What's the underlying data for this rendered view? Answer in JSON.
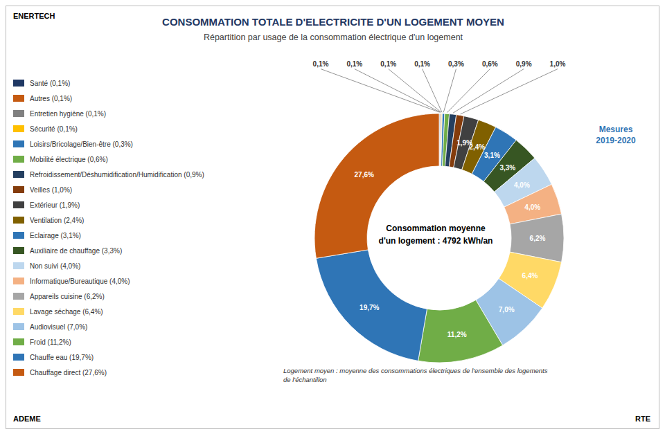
{
  "chart_data": {
    "type": "donut",
    "title": "CONSOMMATION TOTALE D'ELECTRICITE D'UN LOGEMENT MOYEN",
    "subtitle": "Répartition par usage de la consommation électrique d'un logement",
    "categories": [
      "Santé (0,1%)",
      "Autres (0,1%)",
      "Entretien hygiène (0,1%)",
      "Sécurité (0,1%)",
      "Loisirs/Bricolage/Bien-être (0,3%)",
      "Mobilité électrique (0,6%)",
      "Refroidissement/Déshumidification/Humidification (0,9%)",
      "Veilles (1,0%)",
      "Extérieur (1,9%)",
      "Ventilation (2,4%)",
      "Eclairage (3,1%)",
      "Auxiliaire de chauffage (3,3%)",
      "Non suivi (4,0%)",
      "Informatique/Bureautique (4,0%)",
      "Appareils cuisine (6,2%)",
      "Lavage séchage (6,4%)",
      "Audiovisuel (7,0%)",
      "Froid (11,2%)",
      "Chauffe eau (19,7%)",
      "Chauffage direct (27,6%)"
    ],
    "values": [
      0.1,
      0.1,
      0.1,
      0.1,
      0.3,
      0.6,
      0.9,
      1.0,
      1.9,
      2.4,
      3.1,
      3.3,
      4.0,
      4.0,
      6.2,
      6.4,
      7.0,
      11.2,
      19.7,
      27.6
    ],
    "value_labels": [
      "0,1%",
      "0,1%",
      "0,1%",
      "0,1%",
      "0,3%",
      "0,6%",
      "0,9%",
      "1,0%",
      "1,9%",
      "2,4%",
      "3,1%",
      "3,3%",
      "4,0%",
      "4,0%",
      "6,2%",
      "6,4%",
      "7,0%",
      "11,2%",
      "19,7%",
      "27,6%"
    ],
    "colors": [
      "#1F3864",
      "#C55A11",
      "#808080",
      "#FFC000",
      "#2E75B6",
      "#70AD47",
      "#243F60",
      "#843C0C",
      "#404040",
      "#806000",
      "#2F75B6",
      "#375623",
      "#BDD7EE",
      "#F4B183",
      "#A6A6A6",
      "#FFD966",
      "#9DC3E6",
      "#70AD47",
      "#2F75B6",
      "#C55A11"
    ],
    "data_labels": true,
    "annotations": [
      "Consommation moyenne",
      "d'un logement : 4792 kWh/an",
      "ENERTECH",
      "ADEME",
      "RTE",
      "Logement moyen : moyenne des consommations électriques de l'ensemble des logements\nde l'échantillon",
      "Mesures\n2019-2020"
    ]
  }
}
